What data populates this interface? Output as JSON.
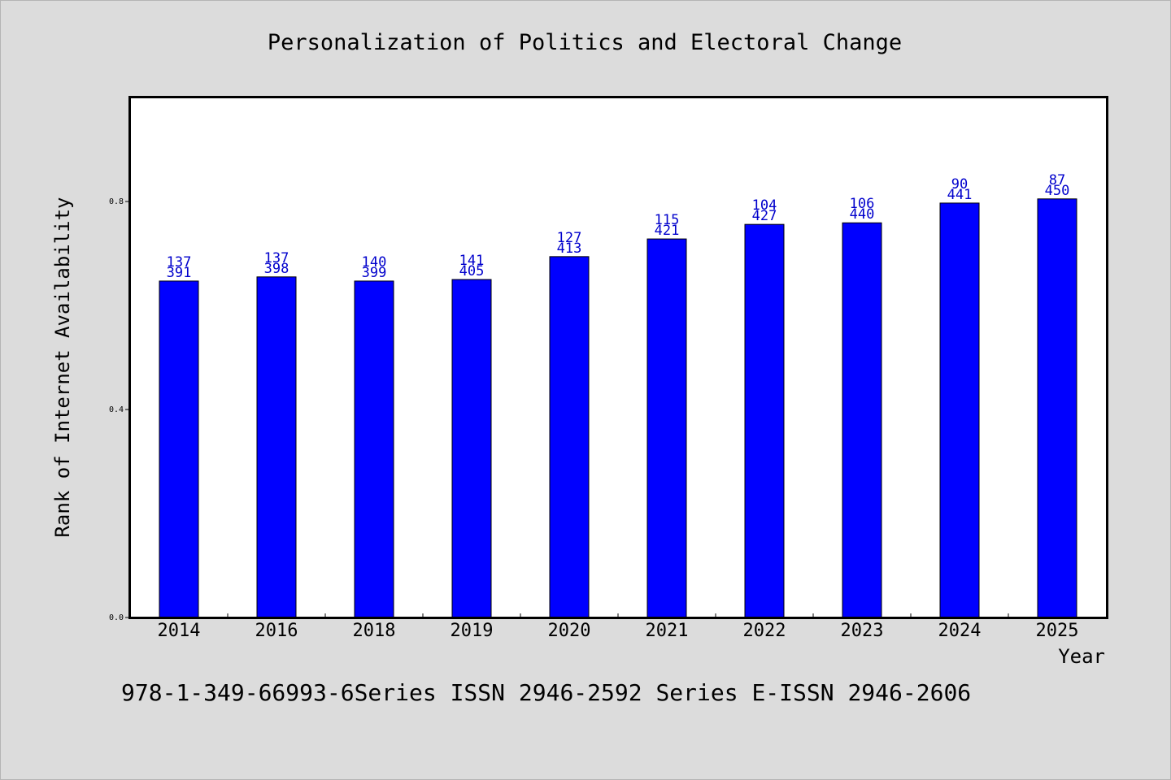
{
  "chart_data": {
    "type": "bar",
    "title": "Personalization of Politics and Electoral Change",
    "xlabel": "Year",
    "ylabel": "Rank of Internet Availability",
    "categories": [
      "2014",
      "2016",
      "2018",
      "2019",
      "2020",
      "2021",
      "2022",
      "2023",
      "2024",
      "2025"
    ],
    "values": [
      0.647,
      0.655,
      0.647,
      0.65,
      0.694,
      0.728,
      0.756,
      0.759,
      0.797,
      0.805
    ],
    "labels_top": [
      "137",
      "137",
      "140",
      "141",
      "127",
      "115",
      "104",
      "106",
      "90",
      "87"
    ],
    "labels_bottom": [
      "391",
      "398",
      "399",
      "405",
      "413",
      "421",
      "427",
      "440",
      "441",
      "450"
    ],
    "ylim": [
      0.0,
      1.0
    ],
    "yticks": [
      "0.0",
      "0.4",
      "0.8"
    ],
    "bar_color": "#0000ff",
    "label_color": "#0000cc",
    "legend": "none",
    "grid": false
  },
  "footer_text": "978-1-349-66993-6Series ISSN 2946-2592 Series E-ISSN 2946-2606"
}
